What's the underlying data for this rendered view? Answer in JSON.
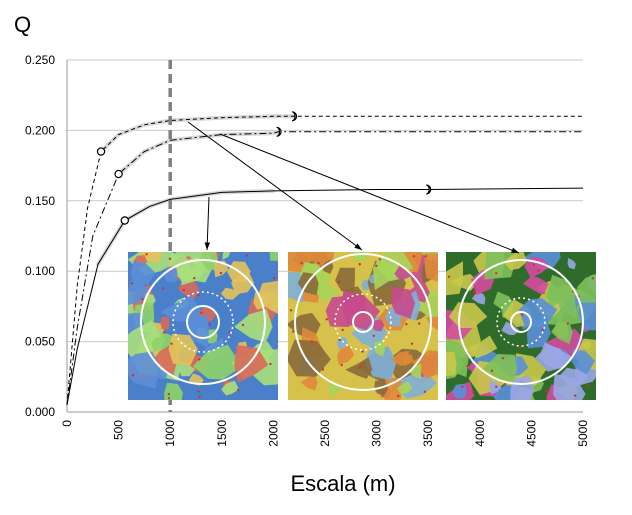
{
  "chart_data": {
    "type": "line",
    "title": "",
    "ylabel": "Q",
    "xlabel": "Escala (m)",
    "xlim": [
      0,
      5000
    ],
    "ylim": [
      0,
      0.25
    ],
    "x_ticks": [
      0,
      500,
      1000,
      1500,
      2000,
      2500,
      3000,
      3500,
      4000,
      4500,
      5000
    ],
    "x_tick_labels": [
      "0",
      "500",
      "1000",
      "1500",
      "2000",
      "2500",
      "3000",
      "3500",
      "4000",
      "4500",
      "5000"
    ],
    "y_ticks": [
      0,
      0.05,
      0.1,
      0.15,
      0.2,
      0.25
    ],
    "y_tick_labels": [
      "0.000",
      "0.050",
      "0.100",
      "0.150",
      "0.200",
      "0.250"
    ],
    "grid": "horizontal",
    "reference_line_x": 1000,
    "series": [
      {
        "style": "dashed",
        "points": [
          [
            0,
            0.005
          ],
          [
            100,
            0.09
          ],
          [
            200,
            0.145
          ],
          [
            330,
            0.185
          ],
          [
            500,
            0.197
          ],
          [
            750,
            0.204
          ],
          [
            1000,
            0.207
          ],
          [
            1500,
            0.209
          ],
          [
            2000,
            0.21
          ],
          [
            2200,
            0.21
          ],
          [
            5000,
            0.21
          ]
        ],
        "markers": [
          [
            330,
            0.185
          ],
          [
            2200,
            0.21
          ]
        ]
      },
      {
        "style": "dash-dot",
        "points": [
          [
            0,
            0.005
          ],
          [
            100,
            0.06
          ],
          [
            250,
            0.125
          ],
          [
            500,
            0.169
          ],
          [
            750,
            0.185
          ],
          [
            1000,
            0.193
          ],
          [
            1500,
            0.197
          ],
          [
            2000,
            0.198
          ],
          [
            2050,
            0.199
          ],
          [
            5000,
            0.199
          ]
        ],
        "markers": [
          [
            500,
            0.169
          ],
          [
            2050,
            0.199
          ]
        ]
      },
      {
        "style": "solid",
        "points": [
          [
            0,
            0.005
          ],
          [
            100,
            0.045
          ],
          [
            300,
            0.105
          ],
          [
            560,
            0.136
          ],
          [
            800,
            0.146
          ],
          [
            1000,
            0.151
          ],
          [
            1500,
            0.156
          ],
          [
            2000,
            0.157
          ],
          [
            3000,
            0.158
          ],
          [
            3500,
            0.158
          ],
          [
            5000,
            0.159
          ]
        ],
        "markers": [
          [
            560,
            0.136
          ],
          [
            3500,
            0.158
          ]
        ]
      }
    ],
    "inset_maps": [
      {
        "name": "map-1",
        "palette": [
          "#4a7fc9",
          "#5b8fd8",
          "#8ed36a",
          "#a7e07c",
          "#e3c25a",
          "#d86a5a"
        ]
      },
      {
        "name": "map-2",
        "palette": [
          "#d6c14a",
          "#a7d55a",
          "#c64a8e",
          "#8a6a3a",
          "#e08a3a",
          "#7fb0d8"
        ]
      },
      {
        "name": "map-3",
        "palette": [
          "#2f6b2a",
          "#9aa6e6",
          "#d64aa0",
          "#7fc05a",
          "#c8c84a",
          "#5a8fd8"
        ]
      }
    ]
  }
}
